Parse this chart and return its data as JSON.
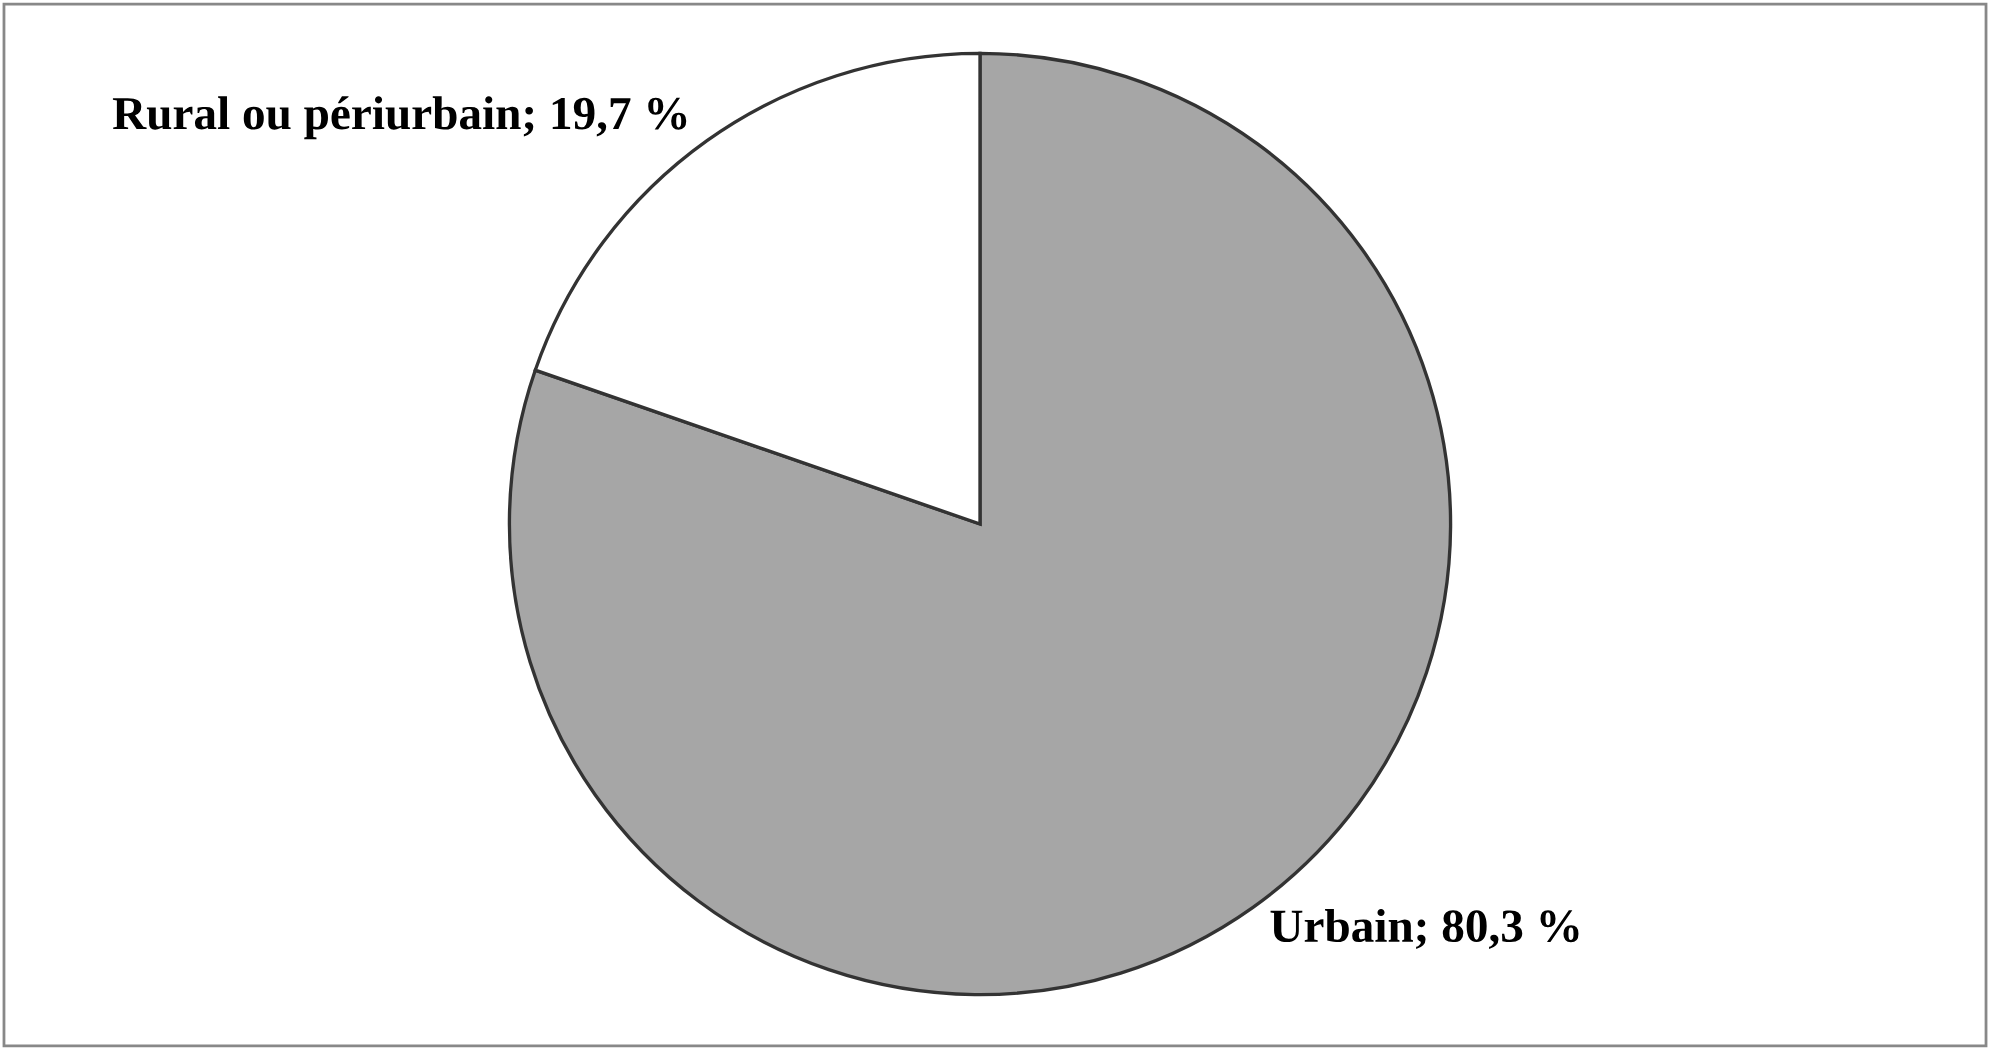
{
  "chart_data": {
    "type": "pie",
    "categories": [
      "Urbain",
      "Rural ou périurbain"
    ],
    "values": [
      80.3,
      19.7
    ],
    "value_labels": [
      "80,3 %",
      "19,7 %"
    ],
    "colors": [
      "#a6a6a6",
      "#ffffff"
    ]
  }
}
